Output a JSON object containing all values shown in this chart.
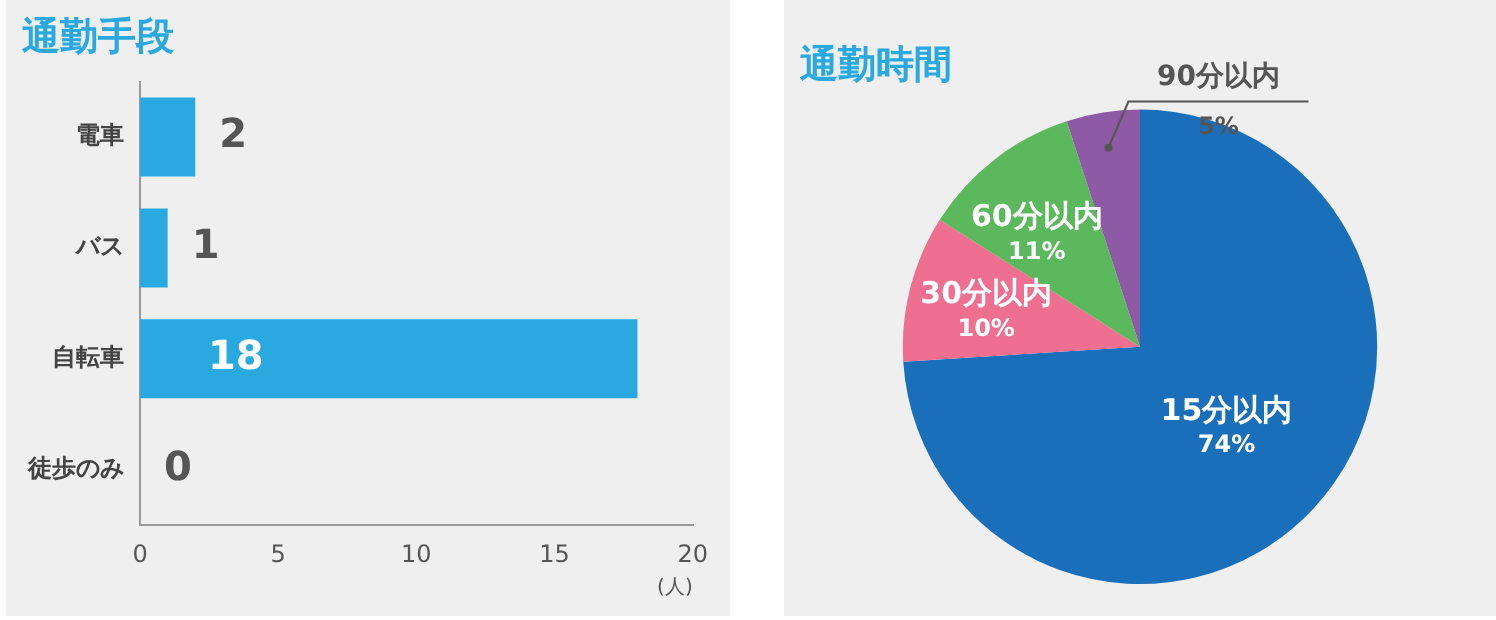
{
  "chart_data": [
    {
      "type": "bar",
      "title": "通勤手段",
      "orientation": "horizontal",
      "categories": [
        "電車",
        "バス",
        "自転車",
        "徒歩のみ"
      ],
      "values": [
        2,
        1,
        18,
        0
      ],
      "color": "#29a9e0",
      "xlim": [
        0,
        20
      ],
      "xticks": [
        0,
        5,
        10,
        15,
        20
      ],
      "xlabel": "(人)",
      "data_labels": true,
      "grid": false,
      "legend": false
    },
    {
      "type": "pie",
      "title": "通勤時間",
      "categories": [
        "15分以内",
        "30分以内",
        "60分以内",
        "90分以内"
      ],
      "values": [
        74,
        10,
        11,
        5
      ],
      "value_labels": [
        "74%",
        "10%",
        "11%",
        "5%"
      ],
      "colors": [
        "#1a6fba",
        "#ee6f8f",
        "#5cb85c",
        "#8e5aa6"
      ],
      "legend": false
    }
  ]
}
